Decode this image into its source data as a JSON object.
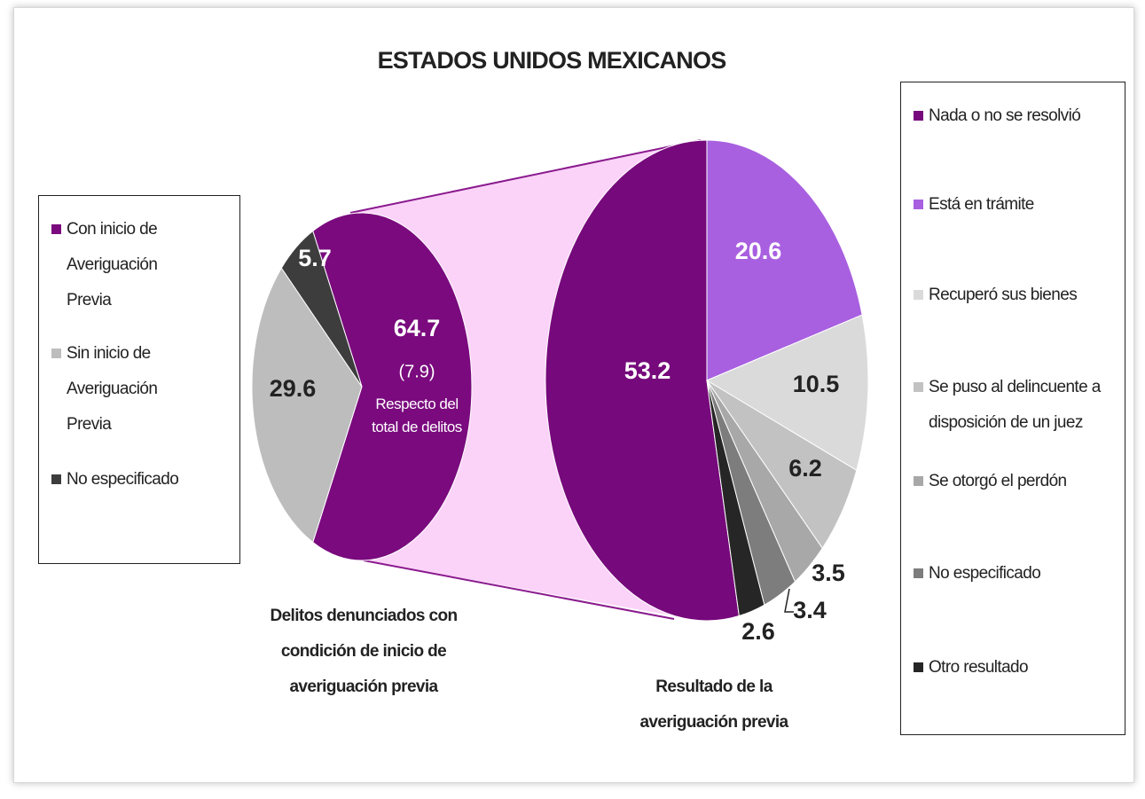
{
  "chart_data": {
    "type": "pie_of_pie",
    "title": "ESTADOS UNIDOS MEXICANOS",
    "pies": [
      {
        "caption": "Delitos denunciados con condición de inicio de averiguación previa",
        "categories": [
          "Con inicio de Averiguación Previa",
          "Sin inicio de Averiguación Previa",
          "No especificado"
        ],
        "values": [
          64.7,
          29.6,
          5.7
        ],
        "colors": [
          "#7a0a7e",
          "#bdbdbd",
          "#3d3d3d"
        ]
      },
      {
        "caption": "Resultado de la averiguación previa",
        "categories": [
          "Nada o no se resolvió",
          "Está en trámite",
          "Recuperó sus bienes",
          "Se puso al delincuente a disposición de un juez",
          "Se otorgó el perdón",
          "No especificado",
          "Otro resultado"
        ],
        "values": [
          53.2,
          20.6,
          10.5,
          6.2,
          3.5,
          3.4,
          2.6
        ],
        "colors": [
          "#76097b",
          "#a860e0",
          "#dadada",
          "#c2c2c2",
          "#a8a8a8",
          "#7d7d7d",
          "#262626"
        ]
      }
    ],
    "annotation": {
      "value": 7.9,
      "value_label": "(7.9)",
      "text": "Respecto del total de delitos"
    }
  }
}
